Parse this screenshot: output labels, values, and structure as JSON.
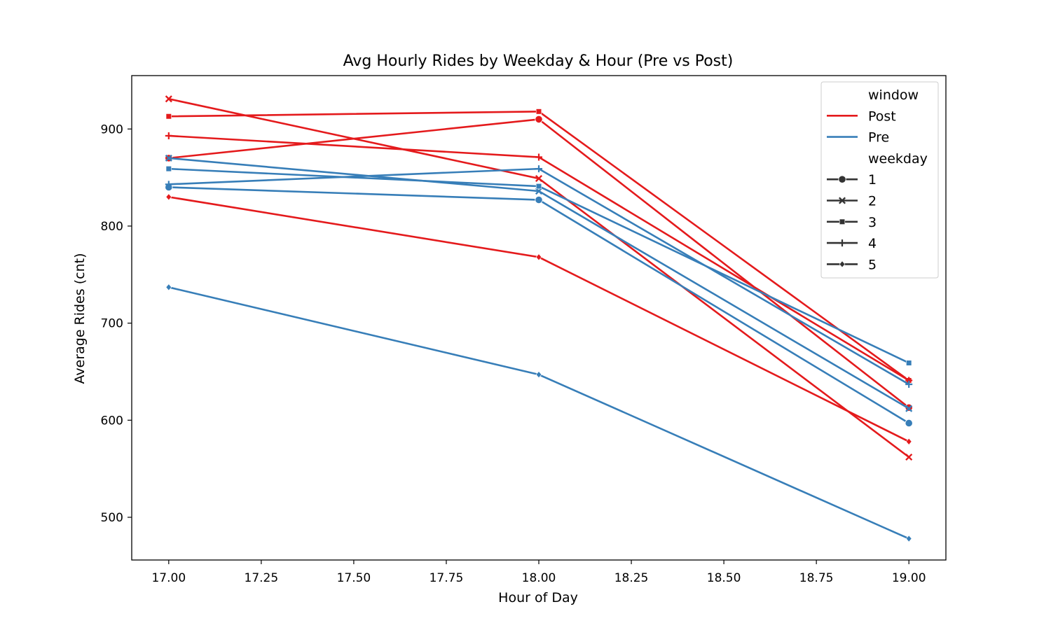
{
  "chart_data": {
    "type": "line",
    "title": "Avg Hourly Rides by Weekday & Hour (Pre vs Post)",
    "xlabel": "Hour of Day",
    "ylabel": "Average Rides (cnt)",
    "xlim": [
      16.9,
      19.1
    ],
    "ylim": [
      456,
      955
    ],
    "x_ticks": [
      "17.00",
      "17.25",
      "17.50",
      "17.75",
      "18.00",
      "18.25",
      "18.50",
      "18.75",
      "19.00"
    ],
    "y_ticks": [
      "500",
      "600",
      "700",
      "800",
      "900"
    ],
    "grid": false,
    "legend": {
      "placement": "top-right",
      "hue_title": "window",
      "style_title": "weekday",
      "hue_entries": [
        {
          "label": "Post",
          "color": "#e41a1c"
        },
        {
          "label": "Pre",
          "color": "#377eb8"
        }
      ],
      "style_entries": [
        {
          "label": "1",
          "marker": "circle"
        },
        {
          "label": "2",
          "marker": "x"
        },
        {
          "label": "3",
          "marker": "square"
        },
        {
          "label": "4",
          "marker": "plus"
        },
        {
          "label": "5",
          "marker": "diamond"
        }
      ]
    },
    "series": [
      {
        "window": "Post",
        "weekday": "1",
        "x": [
          17,
          18,
          19
        ],
        "y": [
          870,
          910,
          613
        ]
      },
      {
        "window": "Post",
        "weekday": "2",
        "x": [
          17,
          18,
          19
        ],
        "y": [
          931,
          849,
          562
        ]
      },
      {
        "window": "Post",
        "weekday": "3",
        "x": [
          17,
          18,
          19
        ],
        "y": [
          913,
          918,
          641
        ]
      },
      {
        "window": "Post",
        "weekday": "4",
        "x": [
          17,
          18,
          19
        ],
        "y": [
          893,
          871,
          641
        ]
      },
      {
        "window": "Post",
        "weekday": "5",
        "x": [
          17,
          18,
          19
        ],
        "y": [
          830,
          768,
          578
        ]
      },
      {
        "window": "Pre",
        "weekday": "1",
        "x": [
          17,
          18,
          19
        ],
        "y": [
          840,
          827,
          597
        ]
      },
      {
        "window": "Pre",
        "weekday": "2",
        "x": [
          17,
          18,
          19
        ],
        "y": [
          870,
          836,
          612
        ]
      },
      {
        "window": "Pre",
        "weekday": "3",
        "x": [
          17,
          18,
          19
        ],
        "y": [
          859,
          841,
          659
        ]
      },
      {
        "window": "Pre",
        "weekday": "4",
        "x": [
          17,
          18,
          19
        ],
        "y": [
          843,
          859,
          637
        ]
      },
      {
        "window": "Pre",
        "weekday": "5",
        "x": [
          17,
          18,
          19
        ],
        "y": [
          737,
          647,
          478
        ]
      }
    ]
  }
}
